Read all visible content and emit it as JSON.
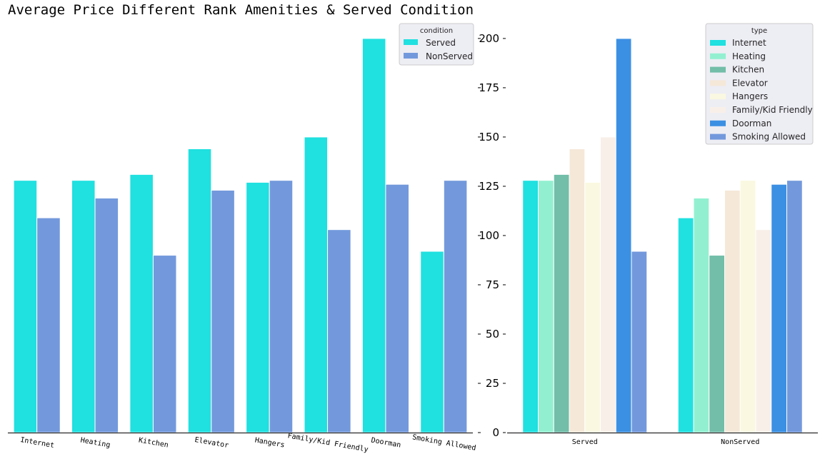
{
  "title": "Average Price Different Rank Amenities & Served Condition",
  "colors": {
    "Served": "#20e0e0",
    "NonServed": "#7399dc",
    "Internet": "#20e0e0",
    "Heating": "#92f0d0",
    "Kitchen": "#72bea8",
    "Elevator": "#f5e8d8",
    "Hangers": "#fbf8e1",
    "Family/Kid Friendly": "#f8efe9",
    "Doorman": "#3c90e3",
    "Smoking Allowed": "#7399dc"
  },
  "chart_data": [
    {
      "type": "bar",
      "categories": [
        "Internet",
        "Heating",
        "Kitchen",
        "Elevator",
        "Hangers",
        "Family/Kid Friendly",
        "Doorman",
        "Smoking Allowed"
      ],
      "series": [
        {
          "name": "Served",
          "values": [
            128,
            128,
            131,
            144,
            127,
            150,
            200,
            92
          ]
        },
        {
          "name": "NonServed",
          "values": [
            109,
            119,
            90,
            123,
            128,
            103,
            126,
            128
          ]
        }
      ],
      "legend": {
        "title": "condition",
        "placement": "top-right"
      },
      "ylim": [
        0,
        205
      ]
    },
    {
      "type": "bar",
      "categories": [
        "Served",
        "NonServed"
      ],
      "series": [
        {
          "name": "Internet",
          "values": [
            128,
            109
          ]
        },
        {
          "name": "Heating",
          "values": [
            128,
            119
          ]
        },
        {
          "name": "Kitchen",
          "values": [
            131,
            90
          ]
        },
        {
          "name": "Elevator",
          "values": [
            144,
            123
          ]
        },
        {
          "name": "Hangers",
          "values": [
            127,
            128
          ]
        },
        {
          "name": "Family/Kid Friendly",
          "values": [
            150,
            103
          ]
        },
        {
          "name": "Doorman",
          "values": [
            200,
            126
          ]
        },
        {
          "name": "Smoking Allowed",
          "values": [
            92,
            128
          ]
        }
      ],
      "legend": {
        "title": "type",
        "placement": "top-right"
      },
      "yticks": [
        0,
        25,
        50,
        75,
        100,
        125,
        150,
        175,
        200
      ],
      "ylim": [
        0,
        205
      ]
    }
  ]
}
